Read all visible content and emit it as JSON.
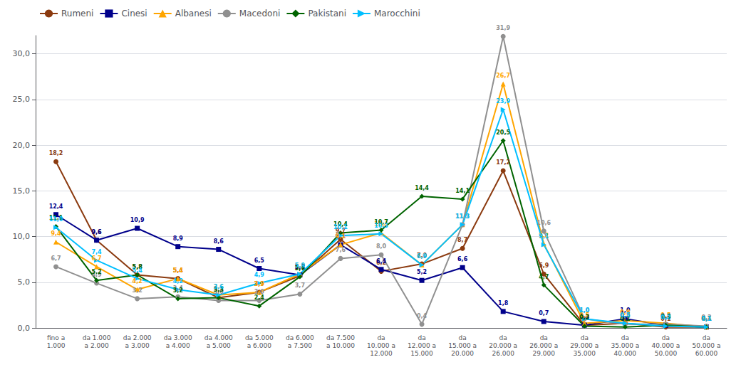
{
  "chart_data": {
    "type": "line",
    "categories": [
      "fino a\n1.000",
      "da 1.000\na 2.000",
      "da 2.000\na 3.000",
      "da 3.000\na 4.000",
      "da 4.000\na 5.000",
      "da 5.000\na 6.000",
      "da 6.000\na 7.500",
      "da 7.500\na 10.000",
      "da\n10.000 a\n12.000",
      "da\n12.000 a\n15.000",
      "da\n15.000 a\n20.000",
      "da\n20.000 a\n26.000",
      "da\n26.000 a\n29.000",
      "da\n29.000 a\n35.000",
      "da\n35.000 a\n40.000",
      "da\n40.000 a\n50.000",
      "da\n50.000 a\n60.000"
    ],
    "series": [
      {
        "name": "Rumeni",
        "color": "#8B3A0F",
        "marker": "circle",
        "values": [
          18.2,
          9.6,
          5.8,
          5.4,
          3.3,
          3.9,
          5.7,
          9.7,
          6.2,
          7.0,
          8.7,
          17.2,
          5.9,
          0.3,
          0.5,
          0.1,
          0.1
        ],
        "value_labels": [
          "18,2",
          "9,6",
          "5,8",
          "5,4",
          "3,3",
          "3,9",
          "5,7",
          "9,7",
          "6,2",
          "7,0",
          "8,7",
          "17,2",
          "5,9",
          "0,3",
          "0,5",
          "0,1",
          "0,1"
        ]
      },
      {
        "name": "Cinesi",
        "color": "#00008B",
        "marker": "square",
        "values": [
          12.4,
          9.6,
          10.9,
          8.9,
          8.6,
          6.5,
          5.8,
          9.1,
          6.4,
          5.2,
          6.6,
          1.8,
          0.7,
          0.3,
          1.0,
          0.3,
          0.1
        ],
        "value_labels": [
          "12,4",
          "9,6",
          "10,9",
          "8,9",
          "8,6",
          "6,5",
          "5,8",
          "9,1",
          "6,4",
          "5,2",
          "6,6",
          "1,8",
          "0,7",
          "0,3",
          "1,0",
          "0,3",
          "0,1"
        ]
      },
      {
        "name": "Albanesi",
        "color": "#FFA500",
        "marker": "triangle",
        "values": [
          9.4,
          6.7,
          4.2,
          5.4,
          3.6,
          3.9,
          5.9,
          9.1,
          10.4,
          6.9,
          11.3,
          26.7,
          9.2,
          0.5,
          0.8,
          0.5,
          0.1
        ],
        "value_labels": [
          "9,4",
          "6,7",
          "4,2",
          "5,4",
          "3,6",
          "3,9",
          "5,9",
          "9,1",
          "10,4",
          "6,9",
          "11,3",
          "26,7",
          "9,2",
          "0,5",
          "0,8",
          "0,5",
          "0,1"
        ]
      },
      {
        "name": "Macedoni",
        "color": "#909090",
        "marker": "circle",
        "values": [
          6.7,
          4.9,
          3.2,
          3.4,
          3.0,
          3.0,
          3.7,
          7.6,
          8.0,
          0.4,
          11.3,
          31.9,
          10.6,
          1.0,
          0.4,
          0.4,
          0.2
        ],
        "value_labels": [
          "6,7",
          "4,9",
          "3,2",
          "3,4",
          "3,0",
          "3,0",
          "3,7",
          "7,6",
          "8,0",
          "0,4",
          "11,3",
          "31,9",
          "10,6",
          "1,0",
          "0,4",
          "0,4",
          "0,2"
        ]
      },
      {
        "name": "Pakistani",
        "color": "#006400",
        "marker": "diamond",
        "values": [
          11.1,
          5.2,
          5.8,
          3.2,
          3.3,
          2.4,
          5.6,
          10.4,
          10.7,
          14.4,
          14.1,
          20.5,
          4.7,
          0.2,
          0.1,
          0.3,
          0.1
        ],
        "value_labels": [
          "11,1",
          "5,2",
          "5,8",
          "3,2",
          "3,3",
          "2,4",
          "5,6",
          "10,4",
          "10,7",
          "14,4",
          "14,1",
          "20,5",
          "4,7",
          "0,2",
          "0,1",
          "0,3",
          "0,1"
        ]
      },
      {
        "name": "Marocchini",
        "color": "#00BFFF",
        "marker": "triangle-right",
        "values": [
          11.0,
          7.4,
          5.4,
          4.2,
          3.6,
          4.9,
          5.9,
          10.1,
          10.3,
          6.9,
          11.3,
          23.9,
          9.1,
          1.0,
          0.5,
          0.2,
          0.1
        ],
        "value_labels": [
          "11,0",
          "7,4",
          "5,4",
          "4,2",
          "3,6",
          "4,9",
          "5,9",
          "10,1",
          "10,3",
          "6,9",
          "11,3",
          "23,9",
          "9,1",
          "1,0",
          "0,5",
          "0,2",
          "0,1"
        ]
      }
    ],
    "ylim": [
      0,
      32
    ],
    "yticks": [
      {
        "value": 0,
        "label": "0,0"
      },
      {
        "value": 5,
        "label": "5,0"
      },
      {
        "value": 10,
        "label": "10,0"
      },
      {
        "value": 15,
        "label": "15,0"
      },
      {
        "value": 20,
        "label": "20,0"
      },
      {
        "value": 25,
        "label": "25,0"
      },
      {
        "value": 30,
        "label": "30,0"
      }
    ],
    "grid": true,
    "legend": "upper left",
    "data_labels": true
  }
}
